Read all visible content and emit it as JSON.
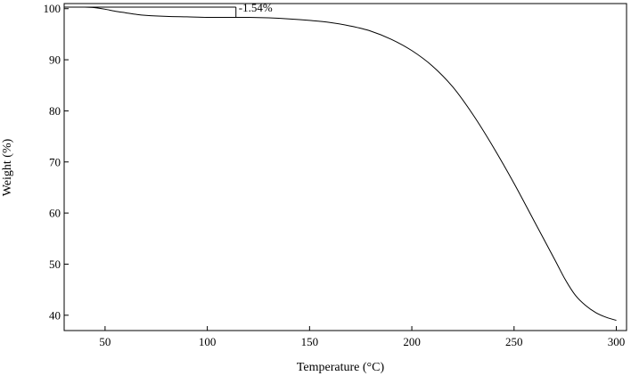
{
  "chart_data": {
    "type": "line",
    "title": "",
    "xlabel": "Temperature (°C)",
    "ylabel": "Weight (%)",
    "xlim": [
      30,
      305
    ],
    "ylim": [
      37,
      101
    ],
    "x_ticks": [
      50,
      100,
      150,
      200,
      250,
      300
    ],
    "y_ticks": [
      40,
      50,
      60,
      70,
      80,
      90,
      100
    ],
    "x_tick_labels": [
      "50",
      "100",
      "150",
      "200",
      "250",
      "300"
    ],
    "y_tick_labels": [
      "40",
      "50",
      "60",
      "70",
      "80",
      "90",
      "100"
    ],
    "grid": false,
    "legend": "none",
    "line_color": "#000000",
    "series": [
      {
        "x": [
          30,
          40,
          45,
          50,
          55,
          60,
          65,
          70,
          80,
          90,
          100,
          110,
          120,
          130,
          140,
          150,
          160,
          170,
          180,
          190,
          200,
          210,
          220,
          230,
          240,
          250,
          260,
          270,
          275,
          280,
          285,
          290,
          295,
          300
        ],
        "y": [
          100.3,
          100.3,
          100.2,
          99.9,
          99.5,
          99.2,
          98.9,
          98.7,
          98.5,
          98.4,
          98.3,
          98.3,
          98.3,
          98.2,
          98.0,
          97.7,
          97.3,
          96.6,
          95.6,
          94.0,
          91.8,
          88.8,
          84.7,
          79.2,
          72.8,
          65.8,
          58.3,
          50.8,
          47.0,
          43.9,
          41.9,
          40.5,
          39.6,
          39.0
        ]
      }
    ],
    "annotations": [
      {
        "text": "-1.54%",
        "x_start": 30,
        "x_end": 114,
        "y_top": 100.3,
        "y_bottom": 98.5
      }
    ]
  }
}
